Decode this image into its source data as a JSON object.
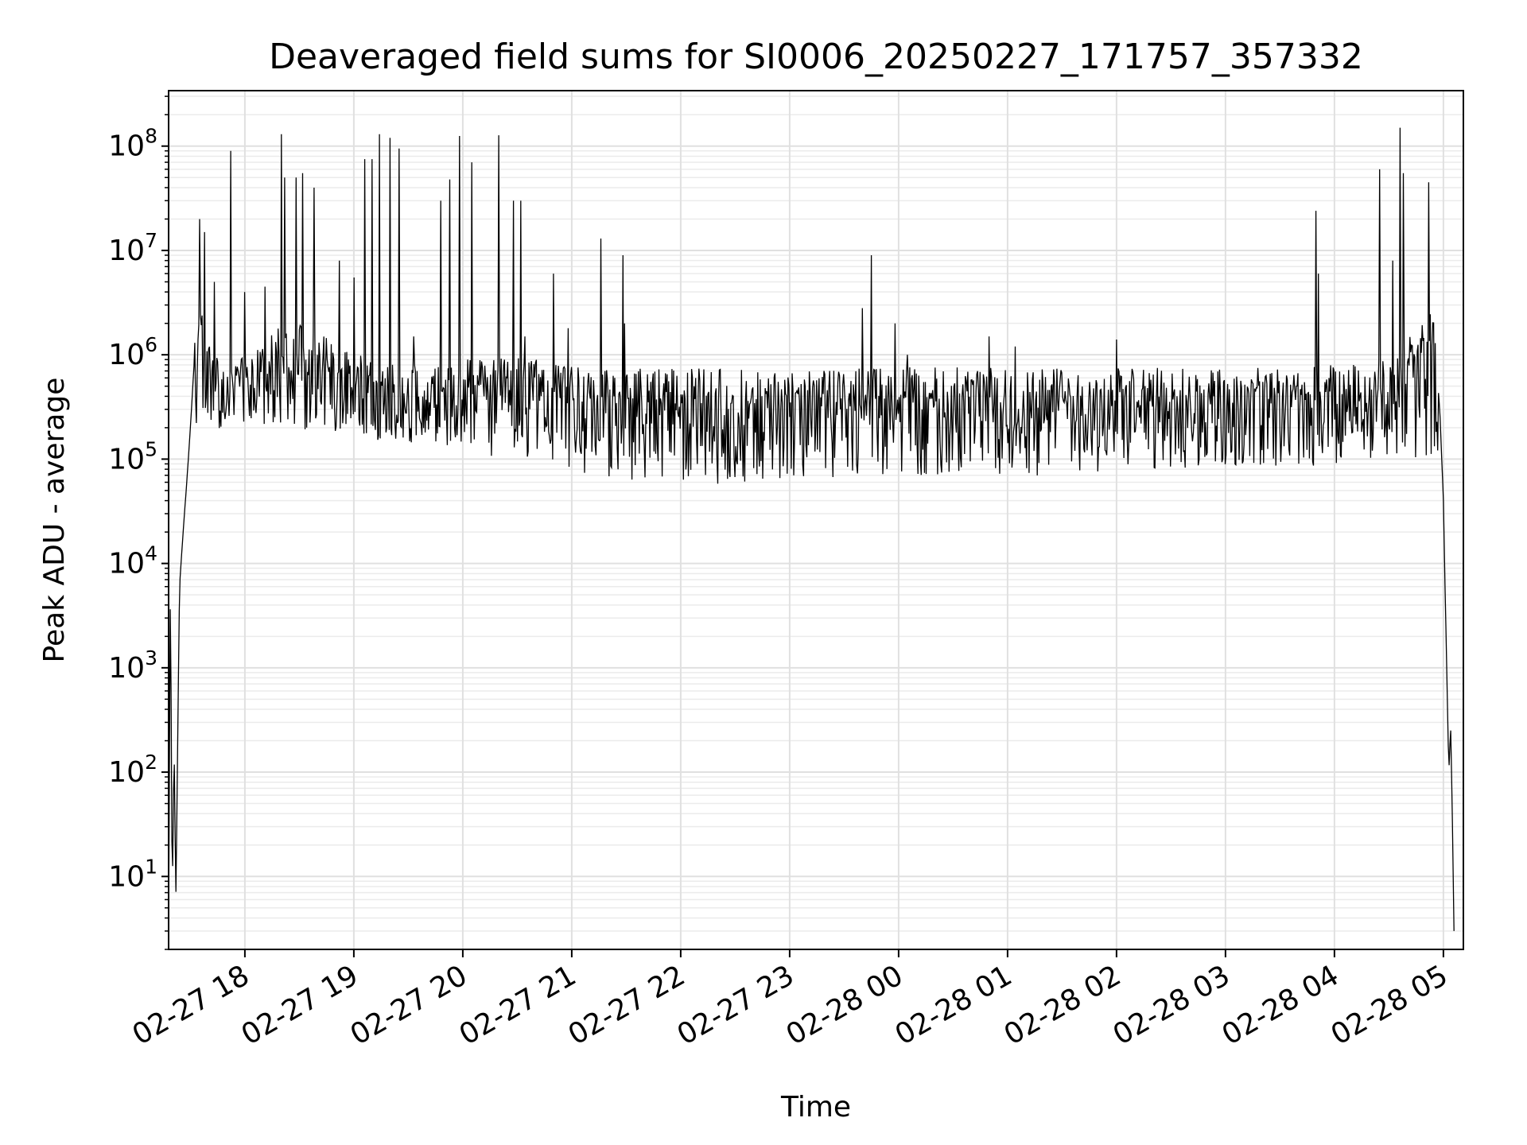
{
  "chart_data": {
    "type": "line",
    "title": "Deaveraged field sums for SI0006_20250227_171757_357332",
    "xlabel": "Time",
    "ylabel": "Peak ADU - average",
    "yscale": "log",
    "ylim": [
      2,
      340000000
    ],
    "xlim": [
      "2025-02-27 17:18",
      "2025-02-28 05:11"
    ],
    "grid": true,
    "grid_minor": true,
    "line_color": "#000000",
    "x_ticks": [
      {
        "value": "2025-02-27 18:00",
        "label": "02-27 18"
      },
      {
        "value": "2025-02-27 19:00",
        "label": "02-27 19"
      },
      {
        "value": "2025-02-27 20:00",
        "label": "02-27 20"
      },
      {
        "value": "2025-02-27 21:00",
        "label": "02-27 21"
      },
      {
        "value": "2025-02-27 22:00",
        "label": "02-27 22"
      },
      {
        "value": "2025-02-27 23:00",
        "label": "02-27 23"
      },
      {
        "value": "2025-02-28 00:00",
        "label": "02-28 00"
      },
      {
        "value": "2025-02-28 01:00",
        "label": "02-28 01"
      },
      {
        "value": "2025-02-28 02:00",
        "label": "02-28 02"
      },
      {
        "value": "2025-02-28 03:00",
        "label": "02-28 03"
      },
      {
        "value": "2025-02-28 04:00",
        "label": "02-28 04"
      },
      {
        "value": "2025-02-28 05:00",
        "label": "02-28 05"
      }
    ],
    "y_ticks": [
      {
        "value": 10,
        "base": "10",
        "exp": "1"
      },
      {
        "value": 100,
        "base": "10",
        "exp": "2"
      },
      {
        "value": 1000,
        "base": "10",
        "exp": "3"
      },
      {
        "value": 10000,
        "base": "10",
        "exp": "4"
      },
      {
        "value": 100000,
        "base": "10",
        "exp": "5"
      },
      {
        "value": 1000000,
        "base": "10",
        "exp": "6"
      },
      {
        "value": 10000000,
        "base": "10",
        "exp": "7"
      },
      {
        "value": 100000000,
        "base": "10",
        "exp": "8"
      }
    ],
    "series": [
      {
        "points": [
          [
            "2025-02-27 17:18",
            3
          ],
          [
            "2025-02-27 17:19",
            8000
          ],
          [
            "2025-02-27 17:20",
            5
          ],
          [
            "2025-02-27 17:21",
            200
          ],
          [
            "2025-02-27 17:22",
            6
          ],
          [
            "2025-02-27 17:24",
            6000
          ],
          [
            "2025-02-27 17:26",
            20000
          ],
          [
            "2025-02-27 17:28",
            60000
          ],
          [
            "2025-02-27 17:30",
            200000
          ],
          [
            "2025-02-27 17:32",
            800000
          ],
          [
            "2025-02-27 17:35",
            1500000
          ],
          [
            "2025-02-27 17:40",
            700000
          ],
          [
            "2025-02-27 17:45",
            400000
          ],
          [
            "2025-02-27 17:50",
            300000
          ],
          [
            "2025-02-27 17:58",
            450000
          ],
          [
            "2025-02-27 18:10",
            700000
          ],
          [
            "2025-02-27 18:25",
            900000
          ],
          [
            "2025-02-27 18:40",
            800000
          ],
          [
            "2025-02-27 18:55",
            500000
          ],
          [
            "2025-02-27 19:10",
            400000
          ],
          [
            "2025-02-27 19:30",
            350000
          ],
          [
            "2025-02-27 20:00",
            400000
          ],
          [
            "2025-02-27 20:30",
            450000
          ],
          [
            "2025-02-27 21:00",
            350000
          ],
          [
            "2025-02-27 22:00",
            330000
          ],
          [
            "2025-02-27 23:00",
            330000
          ],
          [
            "2025-02-28 00:00",
            340000
          ],
          [
            "2025-02-28 01:00",
            340000
          ],
          [
            "2025-02-28 02:00",
            340000
          ],
          [
            "2025-02-28 03:00",
            330000
          ],
          [
            "2025-02-28 03:45",
            340000
          ],
          [
            "2025-02-28 04:30",
            400000
          ],
          [
            "2025-02-28 04:50",
            1000000
          ],
          [
            "2025-02-28 04:55",
            1400000
          ],
          [
            "2025-02-28 04:58",
            300000
          ],
          [
            "2025-02-28 05:00",
            40000
          ],
          [
            "2025-02-28 05:01",
            5000
          ],
          [
            "2025-02-28 05:03",
            100
          ],
          [
            "2025-02-28 05:04",
            280
          ],
          [
            "2025-02-28 05:05",
            30
          ],
          [
            "2025-02-28 05:06",
            2
          ]
        ],
        "spikes": [
          [
            "2025-02-27 17:35",
            20000000
          ],
          [
            "2025-02-27 17:38",
            15000000
          ],
          [
            "2025-02-27 17:43",
            5000000
          ],
          [
            "2025-02-27 17:52",
            90000000
          ],
          [
            "2025-02-27 18:00",
            4000000
          ],
          [
            "2025-02-27 18:11",
            4500000
          ],
          [
            "2025-02-27 18:20",
            130000000
          ],
          [
            "2025-02-27 18:22",
            50000000
          ],
          [
            "2025-02-27 18:28",
            50000000
          ],
          [
            "2025-02-27 18:32",
            55000000
          ],
          [
            "2025-02-27 18:38",
            40000000
          ],
          [
            "2025-02-27 18:52",
            8000000
          ],
          [
            "2025-02-27 19:00",
            5500000
          ],
          [
            "2025-02-27 19:06",
            75000000
          ],
          [
            "2025-02-27 19:10",
            75000000
          ],
          [
            "2025-02-27 19:14",
            130000000
          ],
          [
            "2025-02-27 19:20",
            120000000
          ],
          [
            "2025-02-27 19:25",
            95000000
          ],
          [
            "2025-02-27 19:33",
            1500000
          ],
          [
            "2025-02-27 19:48",
            30000000
          ],
          [
            "2025-02-27 19:53",
            48000000
          ],
          [
            "2025-02-27 19:58",
            125000000
          ],
          [
            "2025-02-27 20:05",
            70000000
          ],
          [
            "2025-02-27 20:20",
            127000000
          ],
          [
            "2025-02-27 20:28",
            30000000
          ],
          [
            "2025-02-27 20:32",
            30000000
          ],
          [
            "2025-02-27 20:34",
            1500000
          ],
          [
            "2025-02-27 20:50",
            6000000
          ],
          [
            "2025-02-27 20:58",
            1800000
          ],
          [
            "2025-02-27 21:16",
            13000000
          ],
          [
            "2025-02-27 21:28",
            9000000
          ],
          [
            "2025-02-27 21:29",
            2000000
          ],
          [
            "2025-02-27 23:40",
            2800000
          ],
          [
            "2025-02-27 23:45",
            9000000
          ],
          [
            "2025-02-27 23:58",
            2000000
          ],
          [
            "2025-02-28 00:05",
            1000000
          ],
          [
            "2025-02-28 00:50",
            1500000
          ],
          [
            "2025-02-28 01:04",
            1200000
          ],
          [
            "2025-02-28 02:00",
            1400000
          ],
          [
            "2025-02-28 03:50",
            24000000
          ],
          [
            "2025-02-28 03:51",
            6000000
          ],
          [
            "2025-02-28 04:25",
            60000000
          ],
          [
            "2025-02-28 04:32",
            8000000
          ],
          [
            "2025-02-28 04:36",
            150000000
          ],
          [
            "2025-02-28 04:38",
            55000000
          ],
          [
            "2025-02-28 04:52",
            45000000
          ]
        ],
        "noise_floor": [
          [
            "2025-02-27 17:40",
            180000
          ],
          [
            "2025-02-27 19:00",
            150000
          ],
          [
            "2025-02-27 20:30",
            100000
          ],
          [
            "2025-02-27 21:30",
            50000
          ],
          [
            "2025-02-28 01:00",
            60000
          ],
          [
            "2025-02-28 04:30",
            80000
          ]
        ]
      }
    ]
  }
}
